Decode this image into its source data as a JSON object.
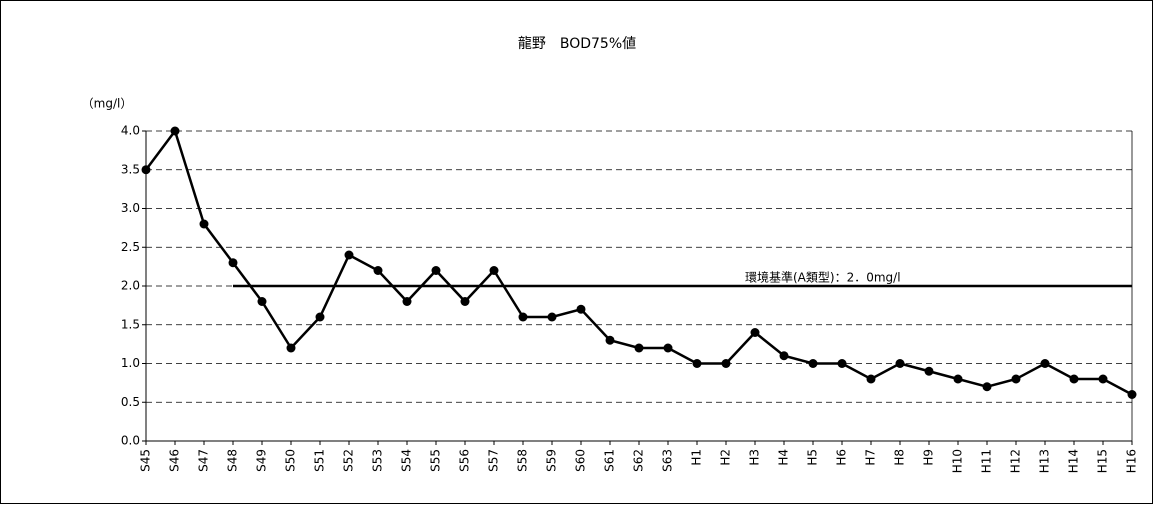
{
  "chart_data": {
    "type": "line",
    "title": "龍野　BOD75%値",
    "y_label": "（mg/l）",
    "categories": [
      "S45",
      "S46",
      "S47",
      "S48",
      "S49",
      "S50",
      "S51",
      "S52",
      "S53",
      "S54",
      "S55",
      "S56",
      "S57",
      "S58",
      "S59",
      "S60",
      "S61",
      "S62",
      "S63",
      "H1",
      "H2",
      "H3",
      "H4",
      "H5",
      "H6",
      "H7",
      "H8",
      "H9",
      "H10",
      "H11",
      "H12",
      "H13",
      "H14",
      "H15",
      "H16"
    ],
    "series": [
      {
        "name": "BOD75%値",
        "color": "#000000",
        "marker": true,
        "values": [
          3.5,
          4.0,
          2.8,
          2.3,
          1.8,
          1.2,
          1.6,
          2.4,
          2.2,
          1.8,
          2.2,
          1.8,
          2.2,
          1.6,
          1.6,
          1.7,
          1.3,
          1.2,
          1.2,
          1.0,
          1.0,
          1.4,
          1.1,
          1.0,
          1.0,
          0.8,
          1.0,
          0.9,
          0.8,
          0.7,
          0.8,
          1.0,
          0.8,
          0.8,
          0.6
        ]
      },
      {
        "name": "環境基準(A類型)：2．0mg/l",
        "color": "#000000",
        "marker": false,
        "values": [
          null,
          null,
          null,
          2,
          2,
          2,
          2,
          2,
          2,
          2,
          2,
          2,
          2,
          2,
          2,
          2,
          2,
          2,
          2,
          2,
          2,
          2,
          2,
          2,
          2,
          2,
          2,
          2,
          2,
          2,
          2,
          2,
          2,
          2,
          2
        ]
      }
    ],
    "ylim": [
      0,
      4
    ],
    "yticks": [
      {
        "value": 0,
        "label": "0.0"
      },
      {
        "value": 0.5,
        "label": "0.5"
      },
      {
        "value": 1,
        "label": "1.0"
      },
      {
        "value": 1.5,
        "label": "1.5"
      },
      {
        "value": 2,
        "label": "2.0"
      },
      {
        "value": 2.5,
        "label": "2.5"
      },
      {
        "value": 3,
        "label": "3.0"
      },
      {
        "value": 3.5,
        "label": "3.5"
      },
      {
        "value": 4,
        "label": "4.0"
      }
    ],
    "grid": true
  }
}
